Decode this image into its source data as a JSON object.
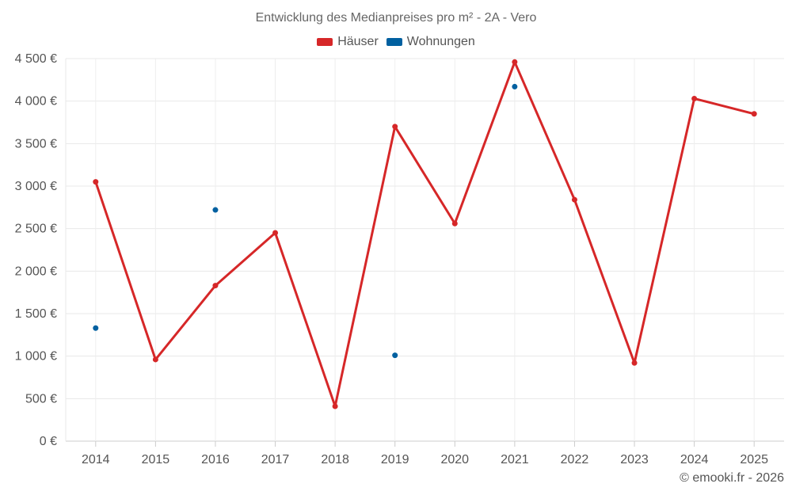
{
  "chart_data": {
    "type": "line",
    "title": "Entwicklung des Medianpreises pro m² - 2A - Vero",
    "categories": [
      "2014",
      "2015",
      "2016",
      "2017",
      "2018",
      "2019",
      "2020",
      "2021",
      "2022",
      "2023",
      "2024",
      "2025"
    ],
    "series": [
      {
        "name": "Häuser",
        "color": "#d62728",
        "values": [
          3050,
          960,
          1830,
          2450,
          410,
          3700,
          2560,
          4460,
          2840,
          920,
          4030,
          3850
        ]
      },
      {
        "name": "Wohnungen",
        "color": "#0060a0",
        "values": [
          1330,
          null,
          2720,
          null,
          null,
          1010,
          null,
          4170,
          null,
          null,
          null,
          null
        ]
      }
    ],
    "y_ticks": [
      0,
      500,
      1000,
      1500,
      2000,
      2500,
      3000,
      3500,
      4000,
      4500
    ],
    "y_tick_labels": [
      "0 €",
      "500 €",
      "1 000 €",
      "1 500 €",
      "2 000 €",
      "2 500 €",
      "3 000 €",
      "3 500 €",
      "4 000 €",
      "4 500 €"
    ],
    "ylim": [
      0,
      4500
    ],
    "xlabel": "",
    "ylabel": "",
    "grid": true,
    "legend_position": "top-center"
  },
  "copyright": "© emooki.fr - 2026"
}
